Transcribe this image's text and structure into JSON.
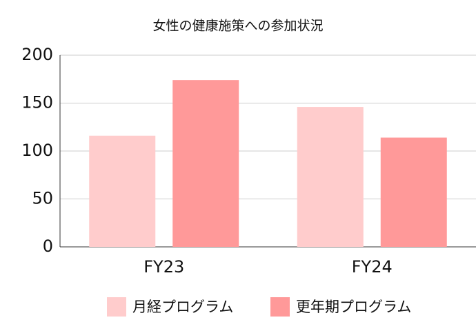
{
  "chart_data": {
    "type": "bar",
    "title": "女性の健康施策への参加状況",
    "categories": [
      "FY23",
      "FY24"
    ],
    "series": [
      {
        "name": "月経プログラム",
        "color": "#ffcccc",
        "values": [
          116,
          146
        ]
      },
      {
        "name": "更年期プログラム",
        "color": "#ff9999",
        "values": [
          174,
          114
        ]
      }
    ],
    "ylim": [
      0,
      200
    ],
    "yticks": [
      0,
      50,
      100,
      150,
      200
    ],
    "grid": true,
    "legend": "bottom"
  }
}
